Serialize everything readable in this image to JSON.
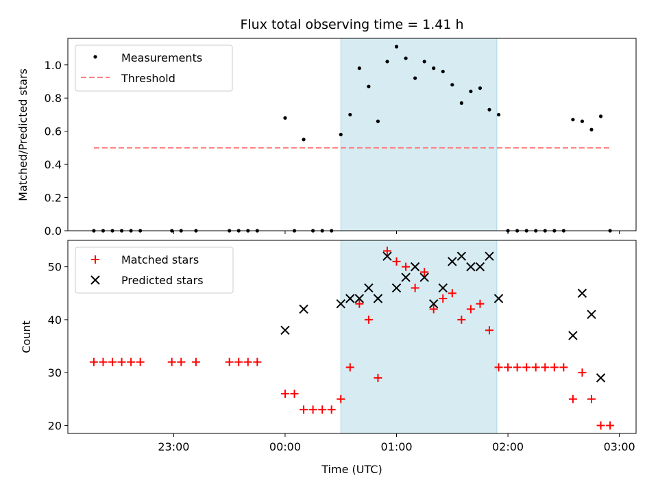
{
  "chart_data": [
    {
      "type": "scatter",
      "title": "Flux total observing time = 1.41 h",
      "xlabel": "",
      "ylabel": "Matched/Predicted stars",
      "ylim": [
        0,
        1.16
      ],
      "yticks": [
        "0.0",
        "0.2",
        "0.4",
        "0.6",
        "0.8",
        "1.0"
      ],
      "ytick_values": [
        0,
        0.2,
        0.4,
        0.6,
        0.8,
        1.0
      ],
      "legend_position": "top-left",
      "highlight_span": {
        "start": "00:30",
        "end": "01:54"
      },
      "series": [
        {
          "name": "Measurements",
          "marker": "dot",
          "color": "#000000",
          "points": [
            [
              "22:17",
              0
            ],
            [
              "22:22",
              0
            ],
            [
              "22:27",
              0
            ],
            [
              "22:32",
              0
            ],
            [
              "22:37",
              0
            ],
            [
              "22:42",
              0
            ],
            [
              "22:59",
              0
            ],
            [
              "23:04",
              0
            ],
            [
              "23:12",
              0
            ],
            [
              "23:30",
              0
            ],
            [
              "23:35",
              0
            ],
            [
              "23:40",
              0
            ],
            [
              "23:45",
              0
            ],
            [
              "24:00",
              0.68
            ],
            [
              "24:05",
              0
            ],
            [
              "24:10",
              0.55
            ],
            [
              "24:15",
              0
            ],
            [
              "24:20",
              0
            ],
            [
              "24:25",
              0
            ],
            [
              "24:30",
              0.58
            ],
            [
              "24:35",
              0.7
            ],
            [
              "24:40",
              0.98
            ],
            [
              "24:45",
              0.87
            ],
            [
              "24:50",
              0.66
            ],
            [
              "24:55",
              1.02
            ],
            [
              "25:00",
              1.11
            ],
            [
              "25:05",
              1.04
            ],
            [
              "25:10",
              0.92
            ],
            [
              "25:15",
              1.02
            ],
            [
              "25:20",
              0.98
            ],
            [
              "25:25",
              0.96
            ],
            [
              "25:30",
              0.88
            ],
            [
              "25:35",
              0.77
            ],
            [
              "25:40",
              0.84
            ],
            [
              "25:45",
              0.86
            ],
            [
              "25:50",
              0.73
            ],
            [
              "25:55",
              0.7
            ],
            [
              "26:00",
              0
            ],
            [
              "26:05",
              0
            ],
            [
              "26:10",
              0
            ],
            [
              "26:15",
              0
            ],
            [
              "26:20",
              0
            ],
            [
              "26:25",
              0
            ],
            [
              "26:30",
              0
            ],
            [
              "26:35",
              0.67
            ],
            [
              "26:40",
              0.66
            ],
            [
              "26:45",
              0.61
            ],
            [
              "26:50",
              0.69
            ],
            [
              "26:55",
              0
            ]
          ]
        },
        {
          "name": "Threshold",
          "style": "dashed-line",
          "color": "#ff7f7f",
          "value": 0.5,
          "x_range": [
            "22:17",
            "26:55"
          ]
        }
      ]
    },
    {
      "type": "scatter",
      "title": "",
      "xlabel": "Time (UTC)",
      "ylabel": "Count",
      "ylim": [
        18.5,
        55
      ],
      "yticks": [
        "20",
        "30",
        "40",
        "50"
      ],
      "ytick_values": [
        20,
        30,
        40,
        50
      ],
      "xticks": [
        "23:00",
        "00:00",
        "01:00",
        "02:00",
        "03:00"
      ],
      "xtick_values": [
        "23:00",
        "24:00",
        "25:00",
        "26:00",
        "27:00"
      ],
      "xlim": [
        "22:03",
        "27:09"
      ],
      "legend_position": "top-left",
      "highlight_span": {
        "start": "00:30",
        "end": "01:54"
      },
      "series": [
        {
          "name": "Matched stars",
          "marker": "plus",
          "color": "#ff0000",
          "points": [
            [
              "22:17",
              32
            ],
            [
              "22:22",
              32
            ],
            [
              "22:27",
              32
            ],
            [
              "22:32",
              32
            ],
            [
              "22:37",
              32
            ],
            [
              "22:42",
              32
            ],
            [
              "22:59",
              32
            ],
            [
              "23:04",
              32
            ],
            [
              "23:12",
              32
            ],
            [
              "23:30",
              32
            ],
            [
              "23:35",
              32
            ],
            [
              "23:40",
              32
            ],
            [
              "23:45",
              32
            ],
            [
              "24:00",
              26
            ],
            [
              "24:05",
              26
            ],
            [
              "24:10",
              23
            ],
            [
              "24:15",
              23
            ],
            [
              "24:20",
              23
            ],
            [
              "24:25",
              23
            ],
            [
              "24:30",
              25
            ],
            [
              "24:35",
              31
            ],
            [
              "24:40",
              43
            ],
            [
              "24:45",
              40
            ],
            [
              "24:50",
              29
            ],
            [
              "24:55",
              53
            ],
            [
              "25:00",
              51
            ],
            [
              "25:05",
              50
            ],
            [
              "25:10",
              46
            ],
            [
              "25:15",
              49
            ],
            [
              "25:20",
              42
            ],
            [
              "25:25",
              44
            ],
            [
              "25:30",
              45
            ],
            [
              "25:35",
              40
            ],
            [
              "25:40",
              42
            ],
            [
              "25:45",
              43
            ],
            [
              "25:50",
              38
            ],
            [
              "25:55",
              31
            ],
            [
              "26:00",
              31
            ],
            [
              "26:05",
              31
            ],
            [
              "26:10",
              31
            ],
            [
              "26:15",
              31
            ],
            [
              "26:20",
              31
            ],
            [
              "26:25",
              31
            ],
            [
              "26:30",
              31
            ],
            [
              "26:35",
              25
            ],
            [
              "26:40",
              30
            ],
            [
              "26:45",
              25
            ],
            [
              "26:50",
              20
            ],
            [
              "26:55",
              20
            ]
          ]
        },
        {
          "name": "Predicted stars",
          "marker": "x",
          "color": "#000000",
          "points": [
            [
              "24:00",
              38
            ],
            [
              "24:10",
              42
            ],
            [
              "24:30",
              43
            ],
            [
              "24:35",
              44
            ],
            [
              "24:40",
              44
            ],
            [
              "24:45",
              46
            ],
            [
              "24:50",
              44
            ],
            [
              "24:55",
              52
            ],
            [
              "25:00",
              46
            ],
            [
              "25:05",
              48
            ],
            [
              "25:10",
              50
            ],
            [
              "25:15",
              48
            ],
            [
              "25:20",
              43
            ],
            [
              "25:25",
              46
            ],
            [
              "25:30",
              51
            ],
            [
              "25:35",
              52
            ],
            [
              "25:40",
              50
            ],
            [
              "25:45",
              50
            ],
            [
              "25:50",
              52
            ],
            [
              "25:55",
              44
            ],
            [
              "26:35",
              37
            ],
            [
              "26:40",
              45
            ],
            [
              "26:45",
              41
            ],
            [
              "26:50",
              29
            ]
          ]
        }
      ]
    }
  ]
}
